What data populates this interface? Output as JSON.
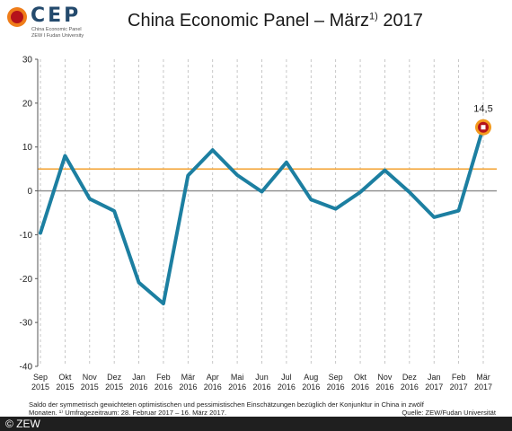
{
  "logo": {
    "text": "CEP",
    "sub1": "China Economic Panel",
    "sub2": "ZEW I Fudan University"
  },
  "title": {
    "main": "China Economic Panel – März",
    "sup": "1)",
    "year": " 2017"
  },
  "chart_data": {
    "type": "line",
    "categories": [
      [
        "Sep",
        "2015"
      ],
      [
        "Okt",
        "2015"
      ],
      [
        "Nov",
        "2015"
      ],
      [
        "Dez",
        "2015"
      ],
      [
        "Jan",
        "2016"
      ],
      [
        "Feb",
        "2016"
      ],
      [
        "Mär",
        "2016"
      ],
      [
        "Apr",
        "2016"
      ],
      [
        "Mai",
        "2016"
      ],
      [
        "Jun",
        "2016"
      ],
      [
        "Jul",
        "2016"
      ],
      [
        "Aug",
        "2016"
      ],
      [
        "Sep",
        "2016"
      ],
      [
        "Okt",
        "2016"
      ],
      [
        "Nov",
        "2016"
      ],
      [
        "Dez",
        "2016"
      ],
      [
        "Jan",
        "2017"
      ],
      [
        "Feb",
        "2017"
      ],
      [
        "Mär",
        "2017"
      ]
    ],
    "series": [
      {
        "values": [
          -9.6,
          8.0,
          -1.8,
          -4.6,
          -20.9,
          -25.7,
          3.5,
          9.3,
          3.6,
          -0.2,
          6.5,
          -2.0,
          -4.1,
          -0.3,
          4.7,
          -0.3,
          -6.0,
          -4.5,
          14.5
        ],
        "color": "#1c7fa1"
      }
    ],
    "reference_lines": [
      {
        "value": 5.0,
        "color": "#f39a1e"
      },
      {
        "value": 0,
        "color": "#8c8c8c"
      }
    ],
    "ylim": [
      -40,
      30
    ],
    "yticks": [
      "30",
      "20",
      "10",
      "0",
      "-10",
      "-20",
      "-30",
      "-40"
    ],
    "annotation": {
      "label": "14,5",
      "index": 18
    },
    "grid": "vertical dashed"
  },
  "footnote": {
    "line1": "Saldo der symmetrisch gewichteten optimistischen und pessimistischen Einschätzungen bezüglich der Konjunktur in China in zwölf",
    "line2": "Monaten. ¹⁾ Umfragezeitraum: 28. Februar 2017 – 16. März 2017."
  },
  "source": "Quelle: ZEW/Fudan Universität",
  "copyright": "© ZEW"
}
